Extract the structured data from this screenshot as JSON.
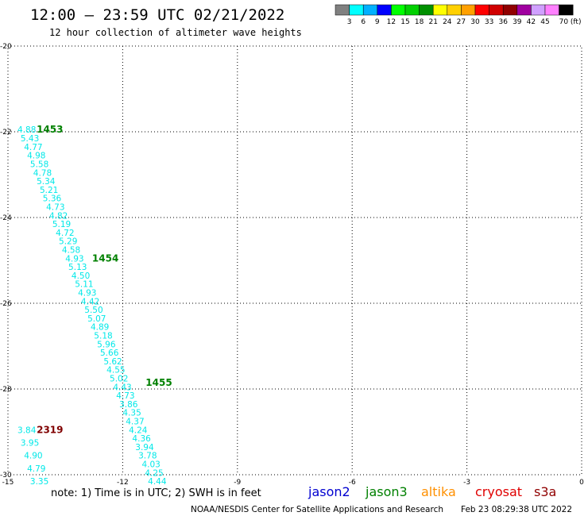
{
  "header": {
    "title": "12:00 — 23:59 UTC 02/21/2022",
    "subtitle": "12 hour collection of altimeter wave heights"
  },
  "legend": {
    "colors": [
      "#808080",
      "#00ffff",
      "#00b0ff",
      "#0000ff",
      "#00ff00",
      "#00d000",
      "#009000",
      "#ffff00",
      "#ffd000",
      "#ffa000",
      "#ff0000",
      "#d00000",
      "#900000",
      "#a000a0",
      "#d0a0ff",
      "#ff80ff",
      "#000000"
    ],
    "labels": [
      "3",
      "6",
      "9",
      "12",
      "15",
      "18",
      "21",
      "24",
      "27",
      "30",
      "33",
      "36",
      "39",
      "42",
      "45",
      "70 (ft)"
    ]
  },
  "chart_data": {
    "type": "scatter",
    "title": "12:00 — 23:59 UTC 02/21/2022",
    "subtitle": "12 hour collection of altimeter wave heights",
    "xlim": [
      -15,
      0
    ],
    "ylim": [
      -30,
      -20
    ],
    "xticks": [
      "-15",
      "-12",
      "-9",
      "-6",
      "-3",
      "0"
    ],
    "yticks": [
      "-20",
      "-22",
      "-24",
      "-26",
      "-28",
      "-30"
    ],
    "grid": true,
    "series": [
      {
        "color": "#00e8e8",
        "points": [
          {
            "x": -14.75,
            "y": -21.94,
            "label": "4.88"
          },
          {
            "x": -14.67,
            "y": -22.15,
            "label": "5.43"
          },
          {
            "x": -14.58,
            "y": -22.35,
            "label": "4.77"
          },
          {
            "x": -14.5,
            "y": -22.55,
            "label": "4.98"
          },
          {
            "x": -14.42,
            "y": -22.75,
            "label": "5.58"
          },
          {
            "x": -14.34,
            "y": -22.95,
            "label": "4.78"
          },
          {
            "x": -14.25,
            "y": -23.15,
            "label": "5.34"
          },
          {
            "x": -14.17,
            "y": -23.35,
            "label": "5.21"
          },
          {
            "x": -14.09,
            "y": -23.55,
            "label": "5.36"
          },
          {
            "x": -14.0,
            "y": -23.75,
            "label": "4.73"
          },
          {
            "x": -13.92,
            "y": -23.95,
            "label": "4.82"
          },
          {
            "x": -13.84,
            "y": -24.15,
            "label": "5.19"
          },
          {
            "x": -13.75,
            "y": -24.35,
            "label": "4.72"
          },
          {
            "x": -13.67,
            "y": -24.55,
            "label": "5.29"
          },
          {
            "x": -13.59,
            "y": -24.75,
            "label": "4.58"
          },
          {
            "x": -13.5,
            "y": -24.95,
            "label": "4.93"
          },
          {
            "x": -13.42,
            "y": -25.15,
            "label": "5.13"
          },
          {
            "x": -13.34,
            "y": -25.35,
            "label": "4.50"
          },
          {
            "x": -13.25,
            "y": -25.55,
            "label": "5.11"
          },
          {
            "x": -13.17,
            "y": -25.75,
            "label": "4.93"
          },
          {
            "x": -13.09,
            "y": -25.95,
            "label": "4.42"
          },
          {
            "x": -13.0,
            "y": -26.15,
            "label": "5.50"
          },
          {
            "x": -12.92,
            "y": -26.35,
            "label": "5.07"
          },
          {
            "x": -12.84,
            "y": -26.55,
            "label": "4.89"
          },
          {
            "x": -12.75,
            "y": -26.75,
            "label": "5.18"
          },
          {
            "x": -12.67,
            "y": -26.95,
            "label": "5.96"
          },
          {
            "x": -12.59,
            "y": -27.15,
            "label": "5.66"
          },
          {
            "x": -12.5,
            "y": -27.35,
            "label": "5.62"
          },
          {
            "x": -12.42,
            "y": -27.55,
            "label": "4.55"
          },
          {
            "x": -12.34,
            "y": -27.75,
            "label": "5.02"
          },
          {
            "x": -12.25,
            "y": -27.95,
            "label": "4.43"
          },
          {
            "x": -12.17,
            "y": -28.15,
            "label": "4.73"
          },
          {
            "x": -12.09,
            "y": -28.35,
            "label": "3.86"
          },
          {
            "x": -12.0,
            "y": -28.55,
            "label": "4.35"
          },
          {
            "x": -11.92,
            "y": -28.75,
            "label": "4.37"
          },
          {
            "x": -11.84,
            "y": -28.95,
            "label": "4.24"
          },
          {
            "x": -11.75,
            "y": -29.15,
            "label": "4.36"
          },
          {
            "x": -11.67,
            "y": -29.35,
            "label": "3.94"
          },
          {
            "x": -11.59,
            "y": -29.55,
            "label": "3.78"
          },
          {
            "x": -11.5,
            "y": -29.75,
            "label": "4.03"
          },
          {
            "x": -11.42,
            "y": -29.95,
            "label": "4.25"
          },
          {
            "x": -11.34,
            "y": -30.15,
            "label": "4.44"
          }
        ]
      },
      {
        "color": "#00e8e8",
        "points": [
          {
            "x": -14.75,
            "y": -28.95,
            "label": "3.84"
          },
          {
            "x": -14.67,
            "y": -29.25,
            "label": "3.95"
          },
          {
            "x": -14.58,
            "y": -29.55,
            "label": "4.90"
          },
          {
            "x": -14.5,
            "y": -29.85,
            "label": "4.79"
          },
          {
            "x": -14.42,
            "y": -30.15,
            "label": "3.35"
          }
        ]
      }
    ],
    "time_labels": [
      {
        "x": -14.25,
        "y": -21.94,
        "label": "1453",
        "color": "#008000"
      },
      {
        "x": -12.8,
        "y": -24.95,
        "label": "1454",
        "color": "#008000"
      },
      {
        "x": -11.4,
        "y": -27.85,
        "label": "1455",
        "color": "#008000"
      },
      {
        "x": -14.25,
        "y": -28.95,
        "label": "2319",
        "color": "#800000"
      }
    ]
  },
  "footer": {
    "note": "note:  1) Time is in UTC;  2) SWH is in feet",
    "satellites": [
      {
        "name": "jason2",
        "color": "#0000d0"
      },
      {
        "name": "jason3",
        "color": "#008000"
      },
      {
        "name": "altika",
        "color": "#ff9000"
      },
      {
        "name": "cryosat",
        "color": "#e00000"
      },
      {
        "name": "s3a",
        "color": "#900000"
      }
    ],
    "credit": "NOAA/NESDIS Center for Satellite Applications and Research",
    "timestamp": "Feb 23 08:29:38 UTC 2022"
  }
}
